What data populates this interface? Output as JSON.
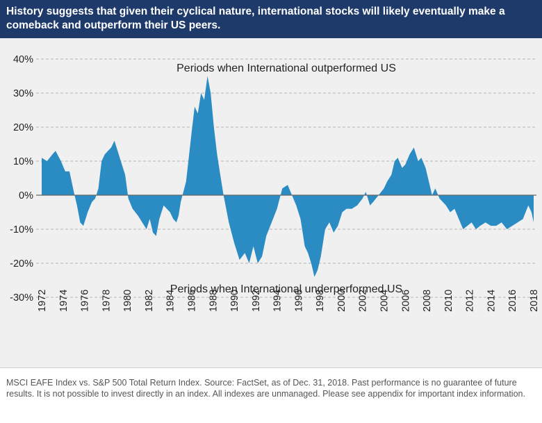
{
  "header": {
    "title": "History suggests that given their cyclical nature, international stocks will likely eventually make a comeback and outperform their US peers."
  },
  "footer": {
    "note": "MSCI EAFE Index vs. S&P 500 Total Return Index. Source: FactSet, as of Dec. 31, 2018. Past performance is no guarantee of future results. It is not possible to invest directly in an index. All indexes are unmanaged. Please see appendix for important index information."
  },
  "colors": {
    "header_bg": "#1d3a6b",
    "area_fill": "#2b8cc4",
    "panel_bg": "#f0f0f0"
  },
  "chart_data": {
    "type": "area",
    "title": "",
    "xlabel": "",
    "ylabel": "",
    "xlim": [
      1972,
      2018
    ],
    "ylim": [
      -30,
      40
    ],
    "y_ticks": [
      "40%",
      "30%",
      "20%",
      "10%",
      "0%",
      "-10%",
      "-20%",
      "-30%"
    ],
    "y_tick_values": [
      40,
      30,
      20,
      10,
      0,
      -10,
      -20,
      -30
    ],
    "x_ticks": [
      "1972",
      "1974",
      "1976",
      "1978",
      "1980",
      "1982",
      "1984",
      "1986",
      "1988",
      "1990",
      "1992",
      "1994",
      "1996",
      "1998",
      "2000",
      "2002",
      "2004",
      "2006",
      "2008",
      "2010",
      "2012",
      "2014",
      "2016",
      "2018"
    ],
    "x_tick_values": [
      1972,
      1974,
      1976,
      1978,
      1980,
      1982,
      1984,
      1986,
      1988,
      1990,
      1992,
      1994,
      1996,
      1998,
      2000,
      2002,
      2004,
      2006,
      2008,
      2010,
      2012,
      2014,
      2016,
      2018
    ],
    "grid": "horizontal dashed",
    "annotations": {
      "top": "Periods when International outperformed US",
      "bottom": "Periods when International underperformed US"
    },
    "series": [
      {
        "x": [
          1972,
          1972.5,
          1973,
          1973.3,
          1973.8,
          1974.2,
          1974.6,
          1975.0,
          1975.3,
          1975.6,
          1975.9,
          1976.3,
          1976.7,
          1977.0,
          1977.3,
          1977.6,
          1977.9,
          1978.2,
          1978.5,
          1978.8,
          1979.1,
          1979.4,
          1979.8,
          1980.1,
          1980.5,
          1981.0,
          1981.4,
          1981.8,
          1982.1,
          1982.4,
          1982.7,
          1983.0,
          1983.4,
          1983.7,
          1984.0,
          1984.3,
          1984.6,
          1984.8,
          1985.0,
          1985.5,
          1986.0,
          1986.3,
          1986.6,
          1986.9,
          1987.2,
          1987.5,
          1987.8,
          1988.1,
          1988.4,
          1988.7,
          1989.0,
          1989.5,
          1990.0,
          1990.5,
          1991.0,
          1991.4,
          1991.8,
          1992.2,
          1992.6,
          1993.0,
          1993.5,
          1994.0,
          1994.5,
          1995.0,
          1995.4,
          1995.8,
          1996.2,
          1996.6,
          1996.9,
          1997.2,
          1997.5,
          1997.8,
          1998.1,
          1998.5,
          1998.9,
          1999.3,
          1999.7,
          2000.1,
          2000.5,
          2001.0,
          2001.5,
          2002.0,
          2002.3,
          2002.7,
          2003.0,
          2003.5,
          2004.0,
          2004.3,
          2004.7,
          2005.0,
          2005.3,
          2005.7,
          2006.0,
          2006.4,
          2006.8,
          2007.2,
          2007.5,
          2007.9,
          2008.2,
          2008.5,
          2008.8,
          2009.2,
          2009.5,
          2009.8,
          2010.2,
          2010.6,
          2011.0,
          2011.4,
          2011.8,
          2012.2,
          2012.6,
          2013.0,
          2013.5,
          2014.0,
          2014.5,
          2015.0,
          2015.5,
          2016.0,
          2016.5,
          2017.0,
          2017.5,
          2017.8,
          2018.0
        ],
        "values": [
          11,
          10,
          12,
          13,
          10,
          7,
          7,
          1,
          -3,
          -8,
          -9,
          -5,
          -2,
          -1,
          2,
          10,
          12,
          13,
          14,
          16,
          13,
          10,
          6,
          -1,
          -4,
          -6,
          -8,
          -10,
          -7,
          -11,
          -12,
          -7,
          -3,
          -4,
          -5,
          -7,
          -8,
          -6,
          -2,
          4,
          18,
          26,
          24,
          30,
          28,
          35,
          30,
          20,
          12,
          6,
          0,
          -8,
          -14,
          -19,
          -17,
          -20,
          -15,
          -20,
          -18,
          -12,
          -8,
          -4,
          2,
          3,
          0,
          -3,
          -7,
          -15,
          -17,
          -20,
          -24,
          -22,
          -18,
          -10,
          -8,
          -11,
          -9,
          -5,
          -4,
          -4,
          -3,
          -1,
          1,
          -3,
          -2,
          0,
          2,
          4,
          6,
          10,
          11,
          8,
          9,
          12,
          14,
          10,
          11,
          8,
          4,
          0,
          2,
          -1,
          -2,
          -3,
          -5,
          -4,
          -7,
          -10,
          -9,
          -8,
          -10,
          -9,
          -8,
          -9,
          -9,
          -8,
          -10,
          -9,
          -8,
          -7,
          -3,
          -5,
          -8
        ]
      }
    ]
  }
}
